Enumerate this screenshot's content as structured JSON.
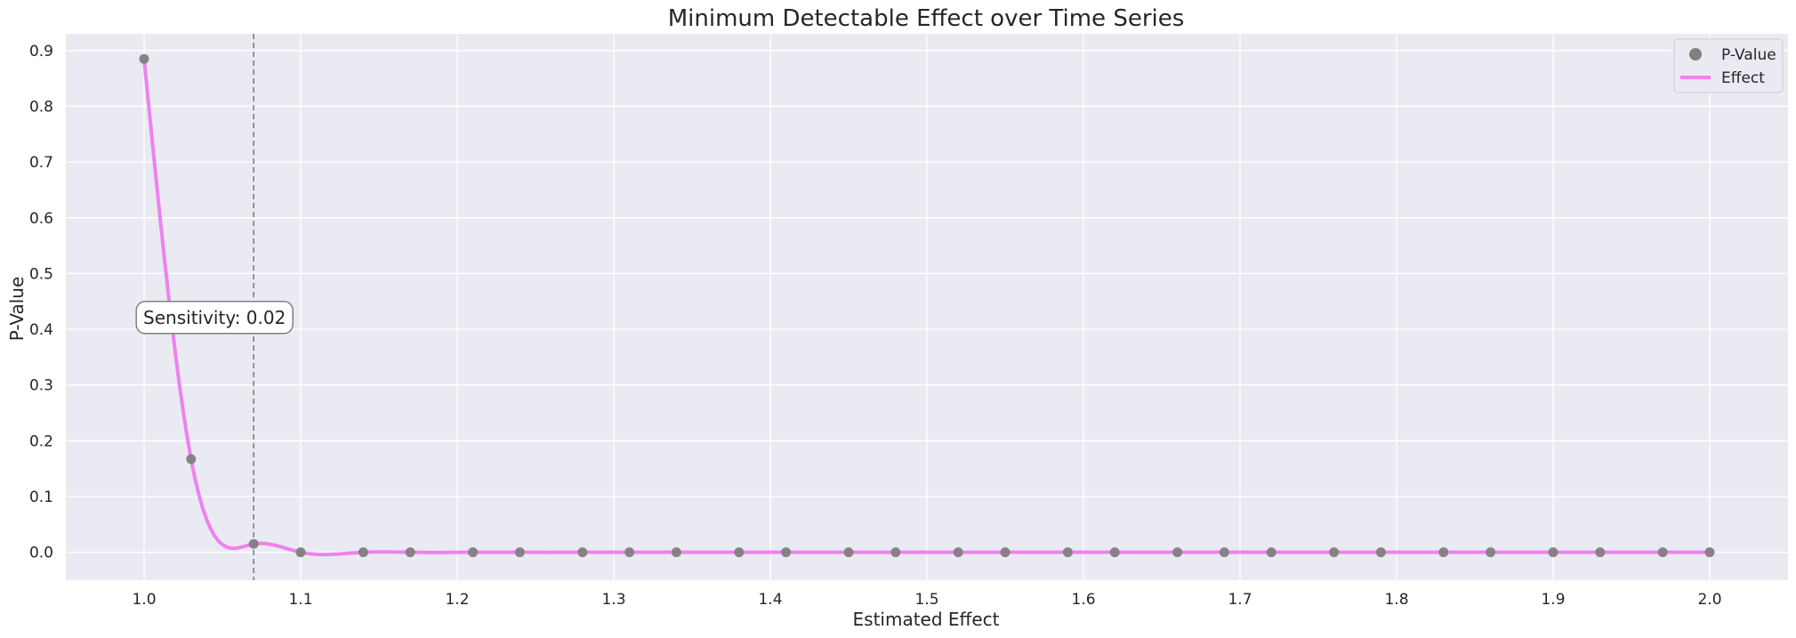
{
  "chart_data": {
    "type": "line",
    "title": "Minimum Detectable Effect over Time Series",
    "xlabel": "Estimated Effect",
    "ylabel": "P-Value",
    "xlim": [
      0.95,
      2.05
    ],
    "ylim": [
      -0.05,
      0.93
    ],
    "xticks": [
      1.0,
      1.1,
      1.2,
      1.3,
      1.4,
      1.5,
      1.6,
      1.7,
      1.8,
      1.9,
      2.0
    ],
    "xtick_labels": [
      "1.0",
      "1.1",
      "1.2",
      "1.3",
      "1.4",
      "1.5",
      "1.6",
      "1.7",
      "1.8",
      "1.9",
      "2.0"
    ],
    "yticks": [
      0.0,
      0.1,
      0.2,
      0.3,
      0.4,
      0.5,
      0.6,
      0.7,
      0.8,
      0.9
    ],
    "ytick_labels": [
      "0.0",
      "0.1",
      "0.2",
      "0.3",
      "0.4",
      "0.5",
      "0.6",
      "0.7",
      "0.8",
      "0.9"
    ],
    "grid": true,
    "legend_position": "top-right",
    "series": [
      {
        "name": "P-Value",
        "kind": "scatter",
        "color": "#808080",
        "x": [
          1.0,
          1.03,
          1.07,
          1.1,
          1.14,
          1.17,
          1.21,
          1.24,
          1.28,
          1.31,
          1.34,
          1.38,
          1.41,
          1.45,
          1.48,
          1.52,
          1.55,
          1.59,
          1.62,
          1.66,
          1.69,
          1.72,
          1.76,
          1.79,
          1.83,
          1.86,
          1.9,
          1.93,
          1.97,
          2.0
        ],
        "y": [
          0.885,
          0.167,
          0.015,
          0.0,
          0.0,
          0.0,
          0.0,
          0.0,
          0.0,
          0.0,
          0.0,
          0.0,
          0.0,
          0.0,
          0.0,
          0.0,
          0.0,
          0.0,
          0.0,
          0.0,
          0.0,
          0.0,
          0.0,
          0.0,
          0.0,
          0.0,
          0.0,
          0.0,
          0.0,
          0.0
        ]
      },
      {
        "name": "Effect",
        "kind": "line",
        "color": "#ee82ee",
        "smooth": true,
        "x": [
          1.0,
          1.03,
          1.07,
          1.1,
          1.14,
          1.17,
          1.21,
          1.24,
          1.28,
          1.31,
          1.34,
          1.38,
          1.41,
          1.45,
          1.48,
          1.52,
          1.55,
          1.59,
          1.62,
          1.66,
          1.69,
          1.72,
          1.76,
          1.79,
          1.83,
          1.86,
          1.9,
          1.93,
          1.97,
          2.0
        ],
        "y": [
          0.885,
          0.167,
          0.015,
          0.0,
          0.0,
          0.0,
          0.0,
          0.0,
          0.0,
          0.0,
          0.0,
          0.0,
          0.0,
          0.0,
          0.0,
          0.0,
          0.0,
          0.0,
          0.0,
          0.0,
          0.0,
          0.0,
          0.0,
          0.0,
          0.0,
          0.0,
          0.0,
          0.0,
          0.0,
          0.0
        ]
      }
    ],
    "vline": {
      "x": 1.07,
      "style": "dashed",
      "color": "#808080"
    },
    "annotation": {
      "text": "Sensitivity: 0.02",
      "x": 1.045,
      "y": 0.41
    }
  }
}
